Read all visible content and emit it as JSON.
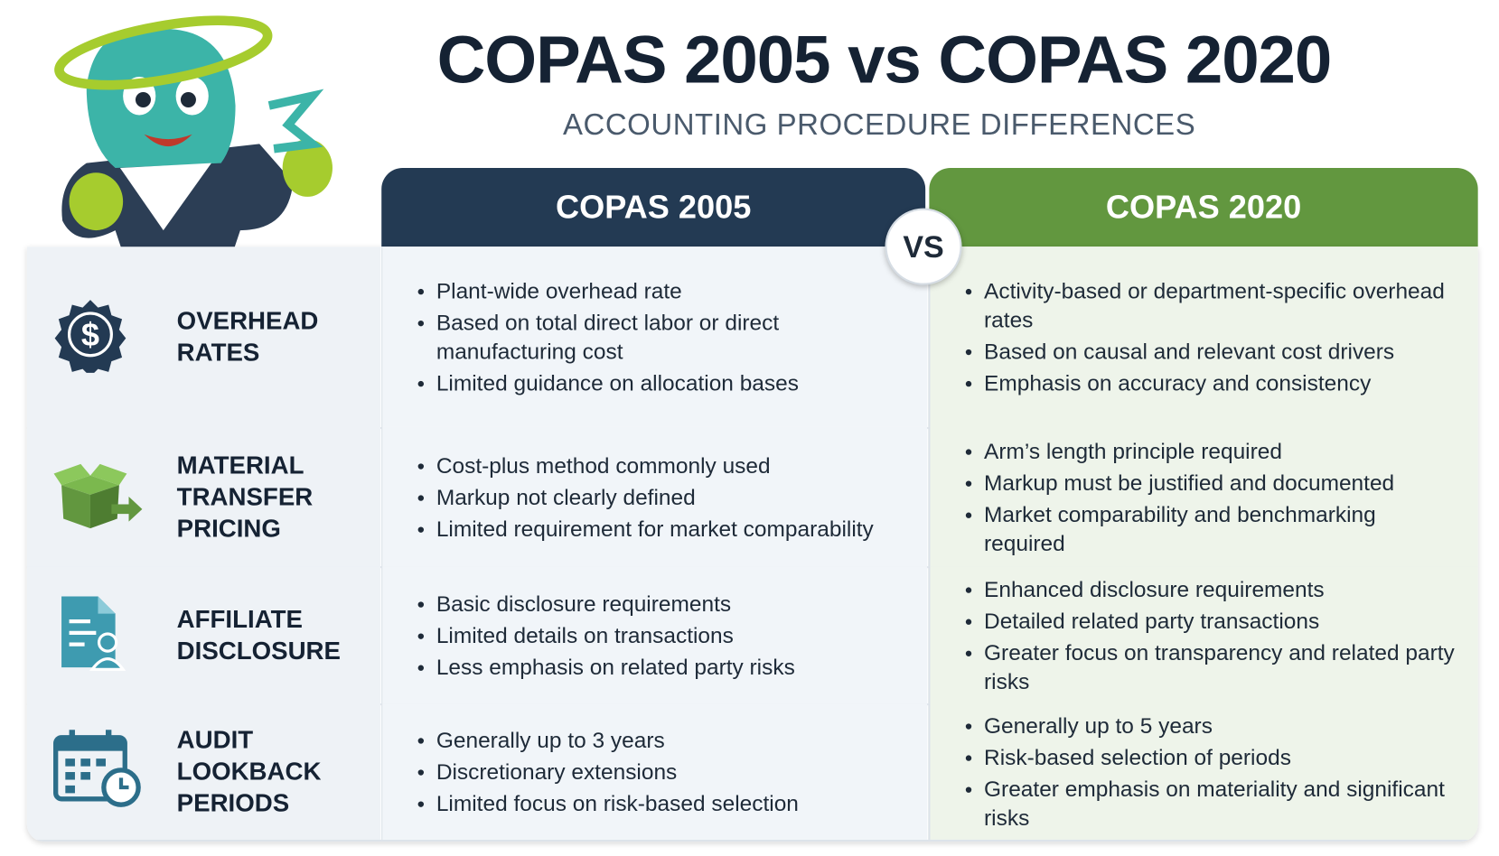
{
  "header": {
    "title": "COPAS 2005 vs COPAS 2020",
    "subtitle": "ACCOUNTING PROCEDURE DIFFERENCES"
  },
  "table": {
    "columns": [
      "COPAS 2005",
      "COPAS 2020"
    ],
    "vs": "VS",
    "rows": [
      {
        "label": "OVERHEAD RATES",
        "copas_2005": [
          "Plant-wide overhead rate",
          "Based on total direct labor or direct manufacturing cost",
          "Limited guidance on allocation bases"
        ],
        "copas_2020": [
          "Activity-based or department-specific overhead rates",
          "Based on causal and relevant cost drivers",
          "Emphasis on accuracy and consistency"
        ]
      },
      {
        "label": "MATERIAL TRANSFER PRICING",
        "copas_2005": [
          "Cost-plus method commonly used",
          "Markup not clearly defined",
          "Limited requirement for market comparability"
        ],
        "copas_2020": [
          "Arm’s length principle required",
          "Markup must be justified and documented",
          "Market comparability and benchmarking required"
        ]
      },
      {
        "label": "AFFILIATE DISCLOSURE",
        "copas_2005": [
          "Basic disclosure requirements",
          "Limited details on transactions",
          "Less emphasis on related party risks"
        ],
        "copas_2020": [
          "Enhanced disclosure requirements",
          "Detailed related party transactions",
          "Greater focus on transparency and related party risks"
        ]
      },
      {
        "label": "AUDIT LOOKBACK PERIODS",
        "copas_2005": [
          "Generally up to 3 years",
          "Discretionary extensions",
          "Limited focus on risk-based selection"
        ],
        "copas_2020": [
          "Generally up to 5 years",
          "Risk-based selection of periods",
          "Greater emphasis on materiality and significant risks"
        ]
      }
    ]
  }
}
